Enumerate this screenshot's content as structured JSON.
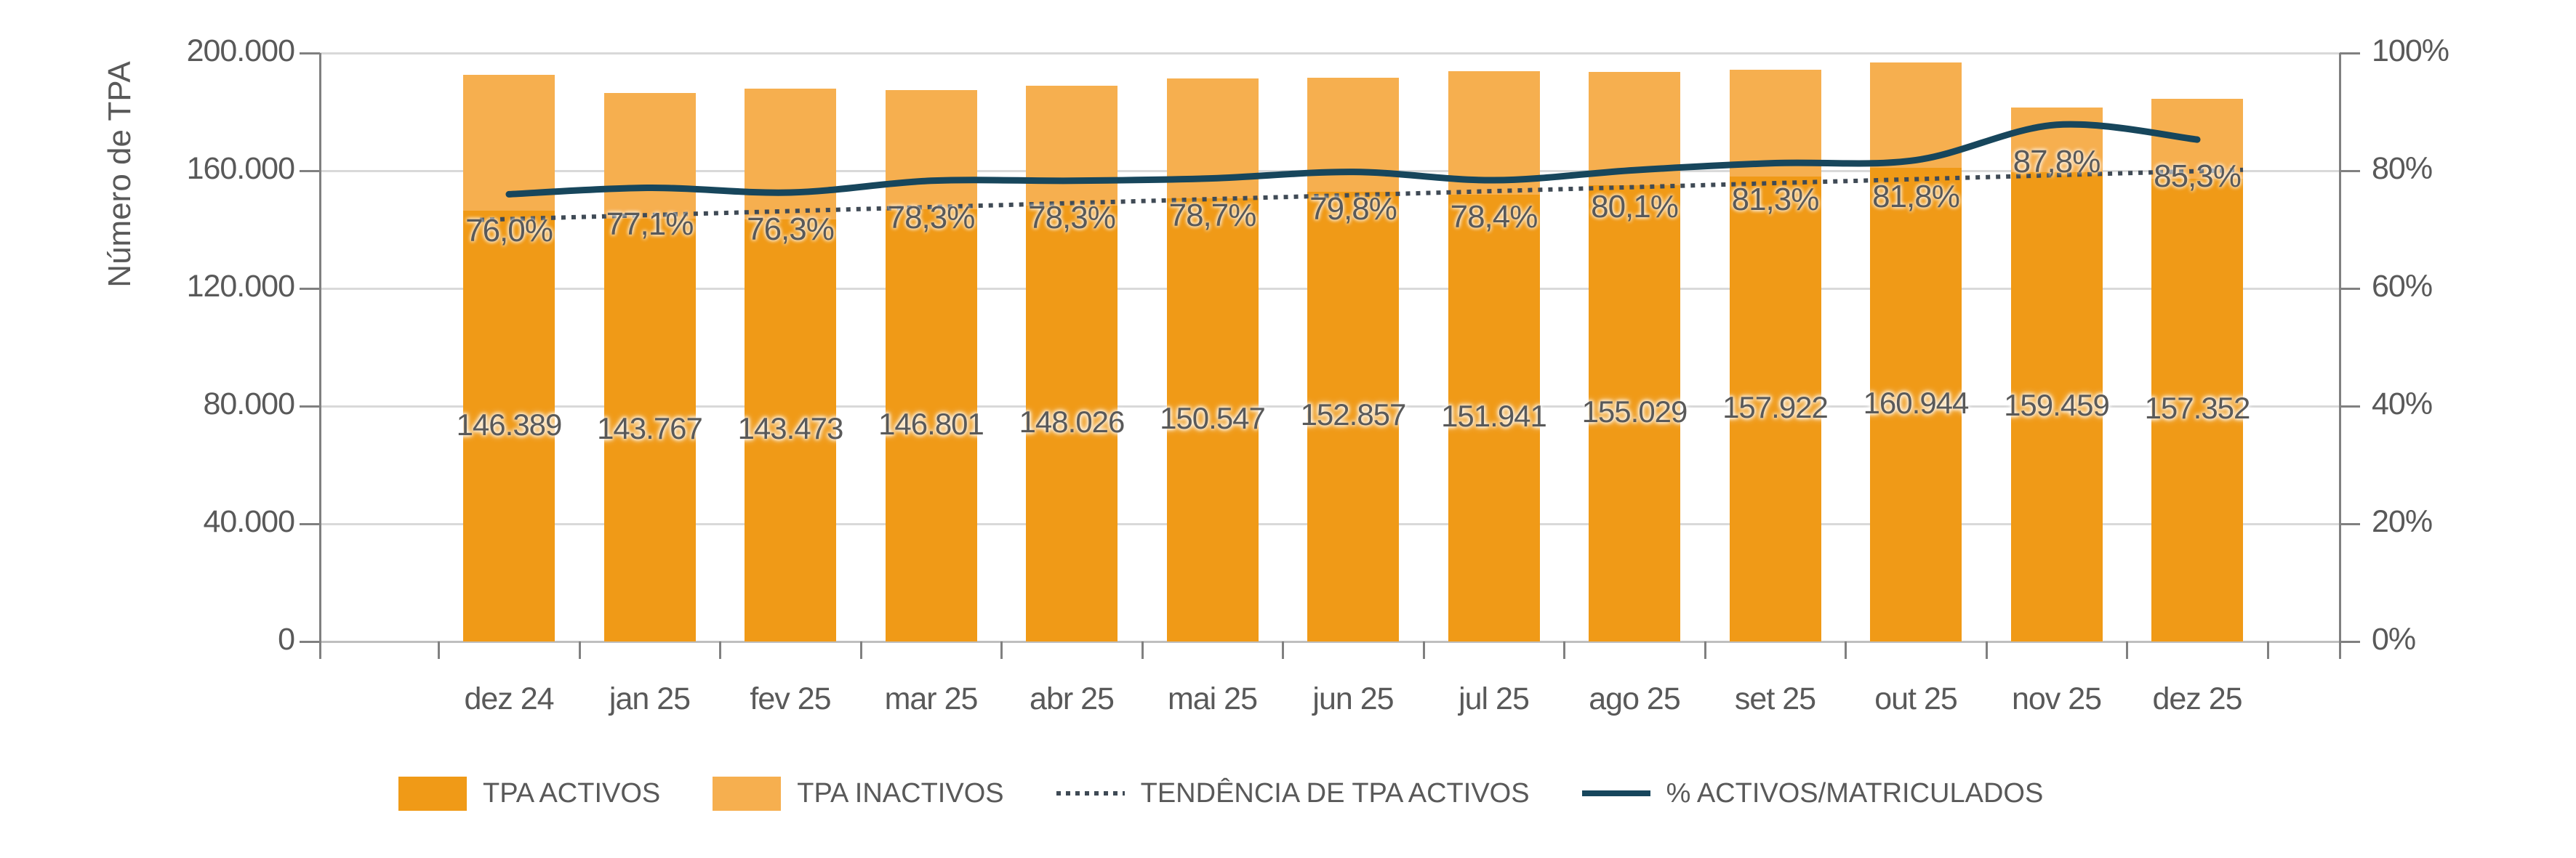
{
  "chart_data": {
    "type": "bar",
    "subtype": "stacked-bars-with-overlay-lines",
    "title": "",
    "ylabel": "Número de TPA",
    "categories": [
      "dez 24",
      "jan 25",
      "fev 25",
      "mar 25",
      "abr 25",
      "mai 25",
      "jun 25",
      "jul 25",
      "ago 25",
      "set 25",
      "out 25",
      "nov 25",
      "dez 25"
    ],
    "series": [
      {
        "name": "TPA ACTIVOS",
        "type": "bar",
        "color": "#F09A17",
        "values": [
          146389,
          143767,
          143473,
          146801,
          148026,
          150547,
          152857,
          151941,
          155029,
          157922,
          160944,
          159459,
          157352
        ],
        "data_labels": [
          "146.389",
          "143.767",
          "143.473",
          "146.801",
          "148.026",
          "150.547",
          "152.857",
          "151.941",
          "155.029",
          "157.922",
          "160.944",
          "159.459",
          "157.352"
        ]
      },
      {
        "name": "TPA INACTIVOS",
        "type": "bar",
        "color": "#F6AF4F",
        "values_estimated": [
          46200,
          42700,
          44500,
          40700,
          41000,
          40800,
          38700,
          41900,
          38500,
          36300,
          35900,
          22100,
          27100
        ],
        "note": "no data labels shown; estimated from bar heights"
      },
      {
        "name": "TENDÊNCIA DE TPA ACTIVOS",
        "type": "trend-line",
        "style": "dotted",
        "color": "#3F4A55",
        "endpoints_estimated": [
          143300,
          160300
        ]
      },
      {
        "name": "% ACTIVOS/MATRICULADOS",
        "type": "line",
        "style": "smooth",
        "color": "#17465C",
        "axis": "right",
        "values_pct": [
          76.0,
          77.1,
          76.3,
          78.3,
          78.3,
          78.7,
          79.8,
          78.4,
          80.1,
          81.3,
          81.8,
          87.8,
          85.3
        ],
        "data_labels": [
          "76,0%",
          "77,1%",
          "76,3%",
          "78,3%",
          "78,3%",
          "78,7%",
          "79,8%",
          "78,4%",
          "80,1%",
          "81,3%",
          "81,8%",
          "87,8%",
          "85,3%"
        ]
      }
    ],
    "totals_matriculados_estimated": [
      192600,
      186500,
      188000,
      187500,
      189000,
      191300,
      191600,
      193800,
      193500,
      194200,
      196800,
      181600,
      184500
    ],
    "axis_left": {
      "label": "Número de TPA",
      "min": 0,
      "max": 200000,
      "step": 40000,
      "tick_labels": [
        "200.000",
        "160.000",
        "120.000",
        "80.000",
        "40.000",
        "0"
      ],
      "tick_values": [
        200000,
        160000,
        120000,
        80000,
        40000,
        0
      ]
    },
    "axis_right": {
      "min": 0,
      "max": 100,
      "step": 20,
      "tick_labels": [
        "100%",
        "80%",
        "60%",
        "40%",
        "20%",
        "0%"
      ],
      "tick_values": [
        100,
        80,
        60,
        40,
        20,
        0
      ]
    },
    "grid": true,
    "legend": {
      "position": "bottom",
      "items": [
        {
          "label": "TPA ACTIVOS",
          "marker": "swatch",
          "color": "#F09A17"
        },
        {
          "label": "TPA INACTIVOS",
          "marker": "swatch",
          "color": "#F6AF4F"
        },
        {
          "label": "TENDÊNCIA DE TPA ACTIVOS",
          "marker": "dotted",
          "color": "#3F4A55"
        },
        {
          "label": "% ACTIVOS/MATRICULADOS",
          "marker": "line",
          "color": "#17465C"
        }
      ]
    },
    "colors": {
      "activos": "#F09A17",
      "inactivos": "#F6AF4F",
      "pct_line": "#17465C",
      "trend_line": "#3F4A55",
      "gridline": "#D9D9D9",
      "axis": "#808080",
      "text": "#595959"
    }
  }
}
